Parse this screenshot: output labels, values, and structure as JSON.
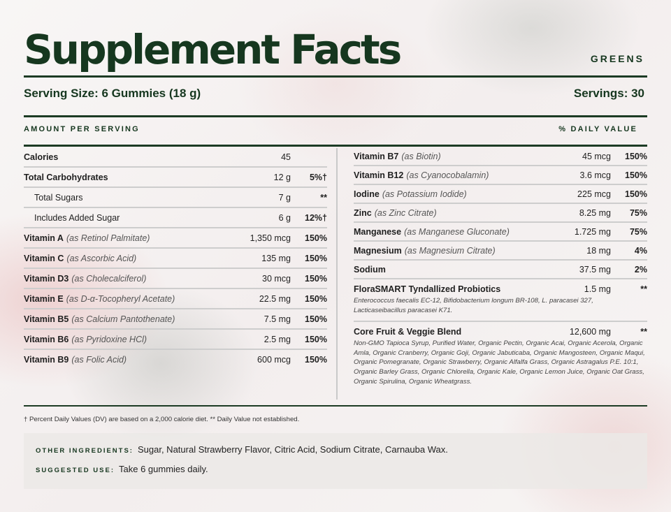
{
  "header": {
    "title": "Supplement Facts",
    "brand": "GREENS"
  },
  "serving": {
    "size_label": "Serving Size: 6 Gummies (18 g)",
    "servings_label": "Servings: 30"
  },
  "columns_header": {
    "amount": "AMOUNT PER SERVING",
    "daily_value": "% DAILY VALUE"
  },
  "left_rows": [
    {
      "name": "Calories",
      "source": "",
      "amount": "45",
      "dv": "",
      "bold": true,
      "indent": false
    },
    {
      "name": "Total Carbohydrates",
      "source": "",
      "amount": "12 g",
      "dv": "5%†",
      "bold": true,
      "indent": false
    },
    {
      "name": "Total Sugars",
      "source": "",
      "amount": "7 g",
      "dv": "**",
      "bold": false,
      "indent": true
    },
    {
      "name": "Includes Added Sugar",
      "source": "",
      "amount": "6 g",
      "dv": "12%†",
      "bold": false,
      "indent": true
    },
    {
      "name": "Vitamin A",
      "source": "(as Retinol Palmitate)",
      "amount": "1,350 mcg",
      "dv": "150%",
      "bold": true,
      "indent": false
    },
    {
      "name": "Vitamin C",
      "source": "(as Ascorbic Acid)",
      "amount": "135 mg",
      "dv": "150%",
      "bold": true,
      "indent": false
    },
    {
      "name": "Vitamin D3",
      "source": "(as Cholecalciferol)",
      "amount": "30 mcg",
      "dv": "150%",
      "bold": true,
      "indent": false
    },
    {
      "name": "Vitamin E",
      "source": "(as D-α-Tocopheryl Acetate)",
      "amount": "22.5 mg",
      "dv": "150%",
      "bold": true,
      "indent": false
    },
    {
      "name": "Vitamin B5",
      "source": "(as Calcium Pantothenate)",
      "amount": "7.5 mg",
      "dv": "150%",
      "bold": true,
      "indent": false
    },
    {
      "name": "Vitamin B6",
      "source": "(as Pyridoxine HCl)",
      "amount": "2.5 mg",
      "dv": "150%",
      "bold": true,
      "indent": false
    },
    {
      "name": "Vitamin B9",
      "source": "(as Folic Acid)",
      "amount": "600 mcg",
      "dv": "150%",
      "bold": true,
      "indent": false
    }
  ],
  "right_rows": [
    {
      "name": "Vitamin B7",
      "source": "(as Biotin)",
      "amount": "45 mcg",
      "dv": "150%",
      "sub": ""
    },
    {
      "name": "Vitamin B12",
      "source": "(as Cyanocobalamin)",
      "amount": "3.6 mcg",
      "dv": "150%",
      "sub": ""
    },
    {
      "name": "Iodine",
      "source": "(as Potassium Iodide)",
      "amount": "225 mcg",
      "dv": "150%",
      "sub": ""
    },
    {
      "name": "Zinc",
      "source": "(as Zinc Citrate)",
      "amount": "8.25 mg",
      "dv": "75%",
      "sub": ""
    },
    {
      "name": "Manganese",
      "source": "(as Manganese Gluconate)",
      "amount": "1.725 mg",
      "dv": "75%",
      "sub": ""
    },
    {
      "name": "Magnesium",
      "source": "(as Magnesium Citrate)",
      "amount": "18 mg",
      "dv": "4%",
      "sub": ""
    },
    {
      "name": "Sodium",
      "source": "",
      "amount": "37.5 mg",
      "dv": "2%",
      "sub": ""
    },
    {
      "name": "FloraSMART Tyndallized Probiotics",
      "source": "",
      "amount": "1.5 mg",
      "dv": "**",
      "sub": "Enterococcus faecalis EC-12, Bifidobacterium longum BR-108, L. paracasei 327, Lacticaseibacillus paracasei K71."
    },
    {
      "name": "Core Fruit & Veggie Blend",
      "source": "",
      "amount": "12,600 mg",
      "dv": "**",
      "sub": "Non-GMO Tapioca Syrup, Purified Water, Organic Pectin, Organic Acai, Organic Acerola, Organic Amla, Organic Cranberry, Organic Goji, Organic Jabuticaba, Organic Mangosteen, Organic Maqui, Organic Pomegranate, Organic Strawberry, Organic Alfalfa Grass, Organic Astragalus P.E. 10:1, Organic Barley Grass, Organic Chlorella, Organic Kale, Organic Lemon Juice, Organic Oat Grass, Organic Spirulina, Organic Wheatgrass."
    }
  ],
  "footnote": "† Percent Daily Values (DV) are based on a 2,000 calorie diet. ** Daily Value not established.",
  "other": {
    "ingredients_label": "OTHER INGREDIENTS:",
    "ingredients_text": "Sugar, Natural Strawberry Flavor, Citric Acid, Sodium Citrate, Carnauba Wax.",
    "use_label": "SUGGESTED USE:",
    "use_text": "Take 6 gummies daily."
  },
  "colors": {
    "accent": "#16371f"
  }
}
